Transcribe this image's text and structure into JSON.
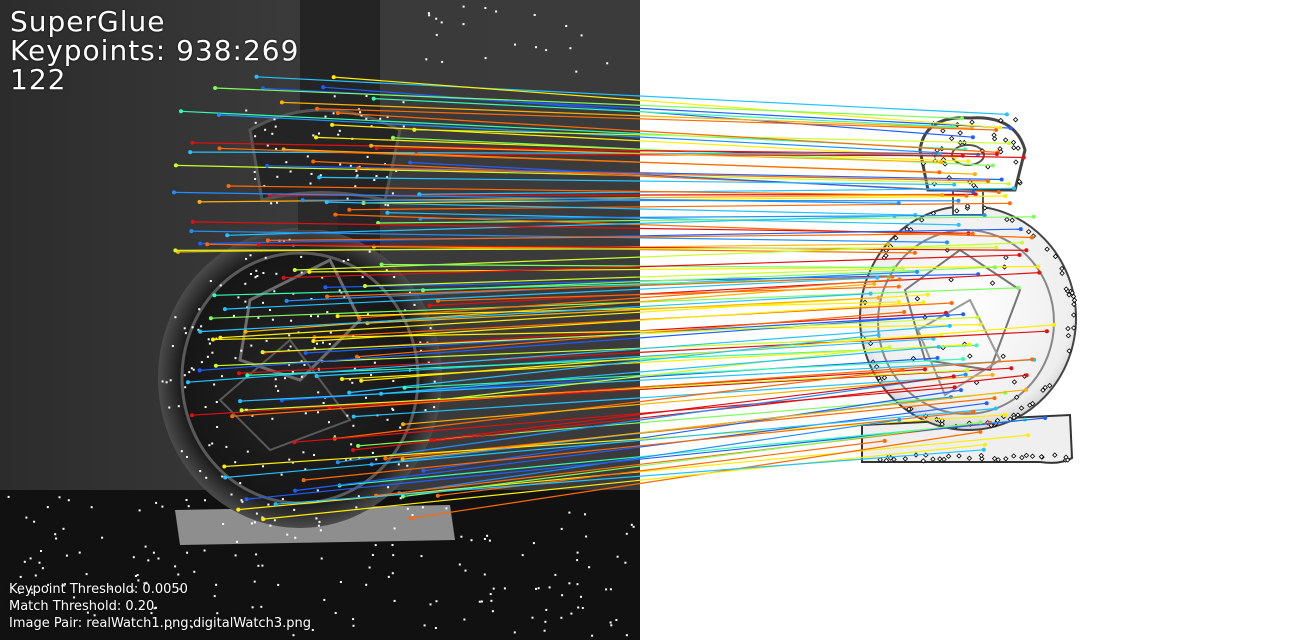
{
  "overlay": {
    "method": "SuperGlue",
    "keypoints": "Keypoints: 938:269",
    "matches": "122",
    "keypoint_threshold": "Keypoint Threshold: 0.0050",
    "match_threshold": "Match Threshold: 0.20",
    "image_pair": "Image Pair: realWatch1.png:digitalWatch3.png"
  },
  "images": {
    "left": "realWatch1.png",
    "right": "digitalWatch3.png"
  },
  "colors": {
    "match_palette": [
      "#1f5fff",
      "#1e90ff",
      "#22c3ff",
      "#2fffb0",
      "#7dff5a",
      "#c8ff2a",
      "#ffee00",
      "#ffb000",
      "#ff6a00",
      "#e01010"
    ],
    "keypoint": "#ffffff",
    "keypoint_outline": "#000000"
  }
}
